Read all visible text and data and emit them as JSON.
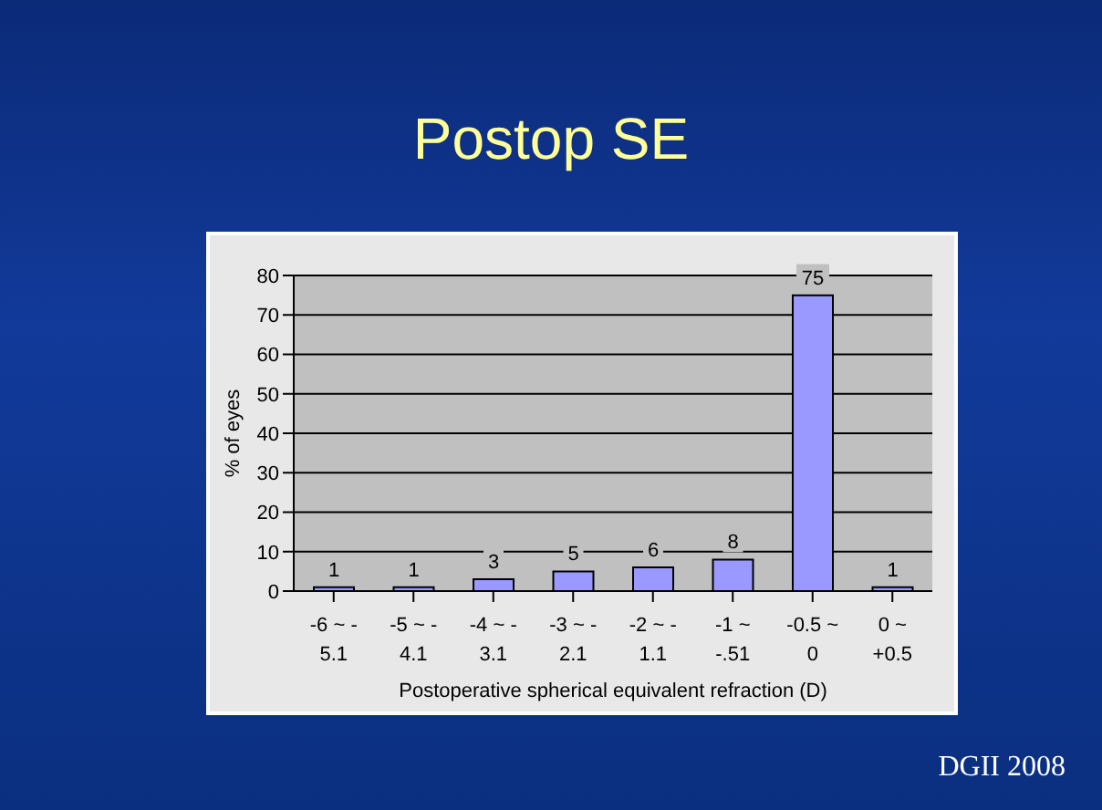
{
  "chart_data": {
    "type": "bar",
    "title": "Postop SE",
    "xlabel": "Postoperative spherical equivalent refraction (D)",
    "ylabel": "% of eyes",
    "categories": [
      "-6 ~ -5.1",
      "-5 ~ -4.1",
      "-4 ~ -3.1",
      "-3 ~ -2.1",
      "-2 ~ -1.1",
      "-1 ~ -.51",
      "-0.5 ~ 0",
      "0 ~ +0.5"
    ],
    "values": [
      1,
      1,
      3,
      5,
      6,
      8,
      75,
      1
    ],
    "color": "#9999ff",
    "ylim": [
      0,
      80
    ],
    "yticks": [
      0,
      10,
      20,
      30,
      40,
      50,
      60,
      70,
      80
    ],
    "grid": "y",
    "data_labels": true,
    "annotations": [
      "DGII 2008"
    ]
  }
}
